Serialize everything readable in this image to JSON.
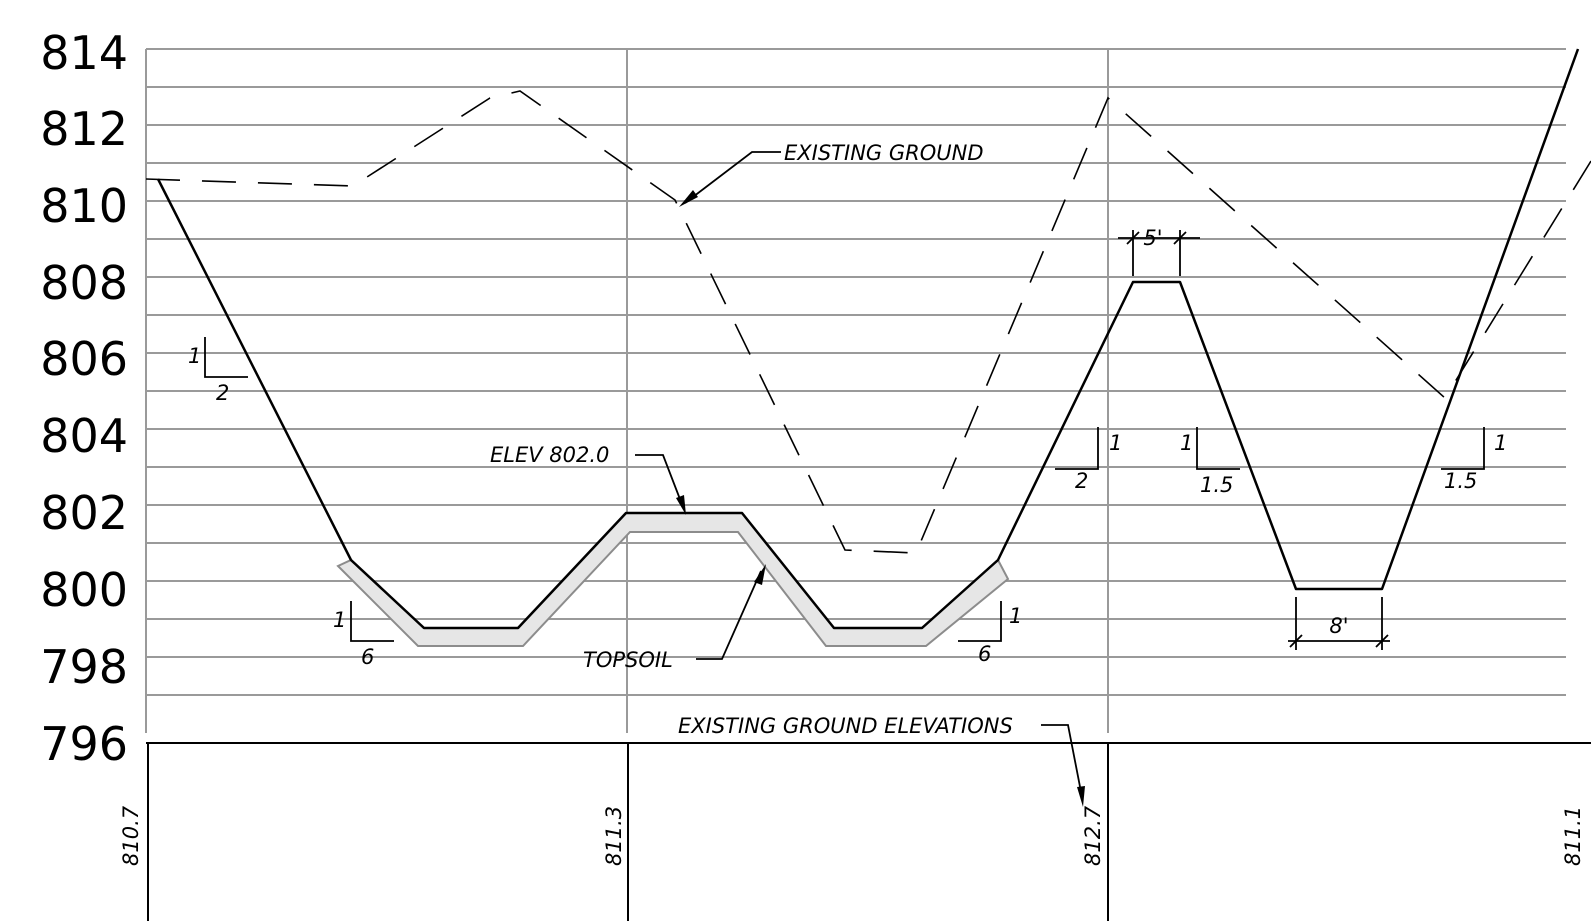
{
  "chart_data": {
    "type": "line",
    "y_axis": {
      "range": [
        796,
        814
      ],
      "tick_labels": [
        "814",
        "812",
        "810",
        "808",
        "806",
        "804",
        "802",
        "800",
        "798",
        "796"
      ]
    },
    "existing_ground_elevations": [
      "810.7",
      "811.3",
      "812.7",
      "811.1"
    ]
  },
  "annotations": {
    "existing_ground": "EXISTING GROUND",
    "elev": "ELEV 802.0",
    "topsoil": "TOPSOIL",
    "existing_ground_elevations": "EXISTING GROUND ELEVATIONS"
  },
  "slopes": [
    {
      "rise": "1",
      "run": "2"
    },
    {
      "rise": "1",
      "run": "6"
    },
    {
      "rise": "1",
      "run": "6"
    },
    {
      "rise": "1",
      "run": "2"
    },
    {
      "rise": "1",
      "run": "1.5"
    },
    {
      "rise": "1",
      "run": "1.5"
    }
  ],
  "dimensions": {
    "top_width": "5'",
    "bottom_width": "8'"
  },
  "colors": {
    "line": "#000000",
    "grid": "#9a9a9a",
    "topsoil_fill": "#e6e6e6",
    "topsoil_stroke": "#8c8c8c"
  }
}
